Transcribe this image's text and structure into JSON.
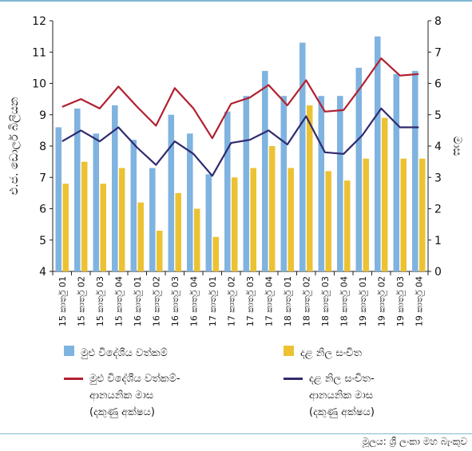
{
  "chart_data": {
    "type": "bar",
    "categories": [
      "15 කාර්තු 01",
      "15 කාර්තු 02",
      "15 කාර්තු 03",
      "15 කාර්තු 04",
      "16 කාර්තු 01",
      "16 කාර්තු 02",
      "16 කාර්තු 03",
      "16 කාර්තු 04",
      "17 කාර්තු 01",
      "17 කාර්තු 02",
      "17 කාර්තු 03",
      "17 කාර්තු 04",
      "18 කාර්තු 01",
      "18 කාර්තු 02",
      "18 කාර්තු 03",
      "18 කාර්තු 04",
      "19 කාර්තු 01",
      "19 කාර්තු 02",
      "19 කාර්තු 03",
      "19 කාර්තු 04"
    ],
    "series": [
      {
        "name": "මුළු විදේශීය වත්කම්",
        "kind": "bar",
        "axis": "left",
        "color": "#7fb3e0",
        "values": [
          8.6,
          9.2,
          8.4,
          9.3,
          8.2,
          7.3,
          9.0,
          8.4,
          7.1,
          9.1,
          9.6,
          10.4,
          9.6,
          11.3,
          9.6,
          9.6,
          10.5,
          11.5,
          10.3,
          10.4
        ]
      },
      {
        "name": "දළ නිල සංචිත",
        "kind": "bar",
        "axis": "left",
        "color": "#ecc233",
        "values": [
          6.8,
          7.5,
          6.8,
          7.3,
          6.2,
          5.3,
          6.5,
          6.0,
          5.1,
          7.0,
          7.3,
          8.0,
          7.3,
          9.3,
          7.2,
          6.9,
          7.6,
          8.9,
          7.6,
          7.6
        ]
      },
      {
        "name": "මුළු විදේශීය වත්කම්-ආනයනික මාස (දකුණු අක්ෂය)",
        "kind": "line",
        "axis": "right",
        "color": "#b22030",
        "values": [
          5.25,
          5.5,
          5.2,
          5.9,
          5.25,
          4.65,
          5.85,
          5.2,
          4.25,
          5.35,
          5.55,
          5.95,
          5.3,
          6.1,
          5.1,
          5.15,
          5.95,
          6.8,
          6.25,
          6.3
        ]
      },
      {
        "name": "දළ නිල සංචිත-ආනයනික මාස (දකුණු අක්ෂය)",
        "kind": "line",
        "axis": "right",
        "color": "#2f2a6e",
        "values": [
          4.15,
          4.5,
          4.15,
          4.6,
          3.95,
          3.4,
          4.15,
          3.75,
          3.05,
          4.1,
          4.2,
          4.5,
          4.05,
          4.95,
          3.8,
          3.75,
          4.35,
          5.2,
          4.6,
          4.6
        ]
      }
    ],
    "ylabel": "එ.ජ. ඩොලර් බිලියන",
    "y2label": "මාස",
    "ylim": [
      4,
      12
    ],
    "y2lim": [
      0,
      8
    ],
    "yticks": [
      "4",
      "5",
      "6",
      "7",
      "8",
      "9",
      "10",
      "11",
      "12"
    ],
    "y2ticks": [
      "0",
      "1",
      "2",
      "3",
      "4",
      "5",
      "6",
      "7",
      "8"
    ]
  },
  "legend": {
    "bar1": "මුළු විදේශීය වත්කම්",
    "bar2": "දළ නිල සංචිත",
    "line1": "මුළු විදේශීය වත්කම්-\nආනයනික මාස\n(දකුණු අක්ෂය)",
    "line2": "දළ නිල සංචිත-\nආනයනික මාස\n(දකුණු අක්ෂය)"
  },
  "source": "මූලය: ශ්‍රී ලංකා මහ බැංකුව"
}
